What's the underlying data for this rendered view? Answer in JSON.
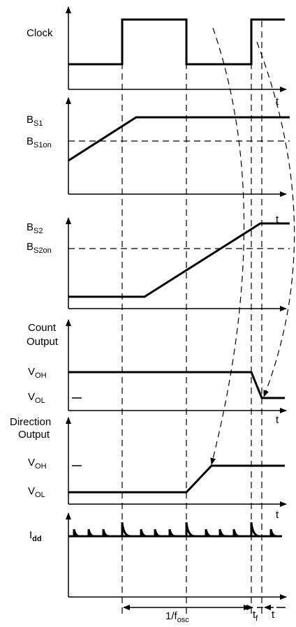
{
  "labels": {
    "clock": "Clock",
    "bs1": {
      "main": "B",
      "sub": "S1"
    },
    "bs1on": {
      "main": "B",
      "sub": "S1on"
    },
    "bs2": {
      "main": "B",
      "sub": "S2"
    },
    "bs2on": {
      "main": "B",
      "sub": "S2on"
    },
    "count_output": [
      "Count",
      "Output"
    ],
    "count_voh": {
      "main": "V",
      "sub": "OH"
    },
    "count_vol": {
      "main": "V",
      "sub": "OL"
    },
    "direction_output": [
      "Direction",
      "Output"
    ],
    "dir_voh": {
      "main": "V",
      "sub": "OH"
    },
    "dir_vol": {
      "main": "V",
      "sub": "OL"
    },
    "idd": {
      "main": "I",
      "sub": "dd"
    },
    "time_axis": "t",
    "period": {
      "main": "1/f",
      "sub": "osc"
    },
    "tf": {
      "main": "t",
      "sub": "f"
    },
    "t_end": "t"
  }
}
